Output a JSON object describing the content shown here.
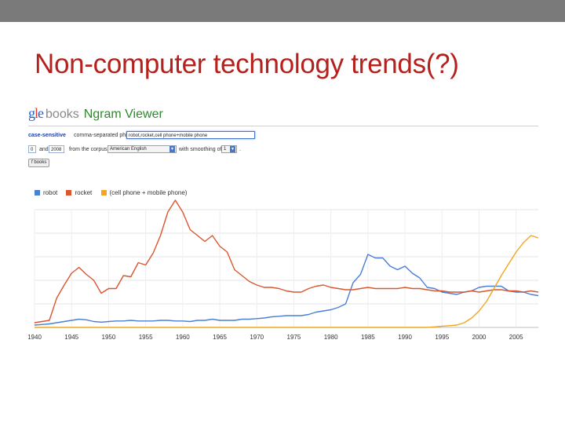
{
  "slide": {
    "title": "Non-computer technology trends(?)"
  },
  "app": {
    "logo_g": "g",
    "logo_l": "l",
    "logo_e": "e",
    "logo_books": "books",
    "logo_name": "Ngram Viewer"
  },
  "controls": {
    "case_sensitive": "case-sensitive",
    "phrases_label": "comma-separated phrases:",
    "phrases_value": "robot,rocket,cell phone+mobile phone",
    "start_year": "0",
    "and_label": "and",
    "end_year": "2008",
    "corpus_label": "from the corpus",
    "corpus_value": "American English",
    "smoothing_label": "with smoothing of",
    "smoothing_value": "1",
    "period": ".",
    "search_button": "f books"
  },
  "colors": {
    "robot": "#4a7fd6",
    "rocket": "#d9562f",
    "phone": "#f2a61f"
  },
  "chart_data": {
    "type": "line",
    "title": "",
    "xlabel": "",
    "ylabel": "",
    "xlim": [
      1940,
      2008
    ],
    "ylim": [
      0,
      1
    ],
    "grid": true,
    "legend_position": "top-left",
    "x_ticks": [
      1940,
      1945,
      1950,
      1955,
      1960,
      1965,
      1970,
      1975,
      1980,
      1985,
      1990,
      1995,
      2000,
      2005
    ],
    "x": [
      1940,
      1941,
      1942,
      1943,
      1944,
      1945,
      1946,
      1947,
      1948,
      1949,
      1950,
      1951,
      1952,
      1953,
      1954,
      1955,
      1956,
      1957,
      1958,
      1959,
      1960,
      1961,
      1962,
      1963,
      1964,
      1965,
      1966,
      1967,
      1968,
      1969,
      1970,
      1971,
      1972,
      1973,
      1974,
      1975,
      1976,
      1977,
      1978,
      1979,
      1980,
      1981,
      1982,
      1983,
      1984,
      1985,
      1986,
      1987,
      1988,
      1989,
      1990,
      1991,
      1992,
      1993,
      1994,
      1995,
      1996,
      1997,
      1998,
      1999,
      2000,
      2001,
      2002,
      2003,
      2004,
      2005,
      2006,
      2007,
      2008
    ],
    "series": [
      {
        "name": "robot",
        "values": [
          0.02,
          0.025,
          0.03,
          0.04,
          0.05,
          0.06,
          0.07,
          0.065,
          0.05,
          0.045,
          0.05,
          0.055,
          0.055,
          0.06,
          0.055,
          0.055,
          0.055,
          0.06,
          0.06,
          0.055,
          0.055,
          0.05,
          0.06,
          0.06,
          0.07,
          0.06,
          0.06,
          0.06,
          0.07,
          0.07,
          0.075,
          0.08,
          0.09,
          0.095,
          0.1,
          0.1,
          0.1,
          0.11,
          0.13,
          0.14,
          0.15,
          0.17,
          0.2,
          0.38,
          0.45,
          0.62,
          0.59,
          0.59,
          0.52,
          0.49,
          0.52,
          0.46,
          0.42,
          0.34,
          0.33,
          0.3,
          0.29,
          0.28,
          0.3,
          0.31,
          0.34,
          0.35,
          0.35,
          0.35,
          0.31,
          0.3,
          0.3,
          0.28,
          0.27
        ]
      },
      {
        "name": "rocket",
        "values": [
          0.04,
          0.05,
          0.06,
          0.25,
          0.36,
          0.46,
          0.51,
          0.45,
          0.4,
          0.29,
          0.33,
          0.33,
          0.44,
          0.43,
          0.55,
          0.53,
          0.63,
          0.78,
          0.98,
          1.08,
          0.98,
          0.83,
          0.78,
          0.73,
          0.78,
          0.69,
          0.64,
          0.49,
          0.44,
          0.39,
          0.36,
          0.34,
          0.34,
          0.33,
          0.31,
          0.3,
          0.3,
          0.33,
          0.35,
          0.36,
          0.34,
          0.33,
          0.32,
          0.32,
          0.33,
          0.34,
          0.33,
          0.33,
          0.33,
          0.33,
          0.34,
          0.33,
          0.33,
          0.32,
          0.31,
          0.31,
          0.3,
          0.3,
          0.3,
          0.31,
          0.3,
          0.31,
          0.32,
          0.32,
          0.31,
          0.31,
          0.3,
          0.31,
          0.3
        ]
      },
      {
        "name": "(cell phone + mobile phone)",
        "values": [
          0,
          0,
          0,
          0,
          0,
          0,
          0,
          0,
          0,
          0,
          0,
          0,
          0,
          0,
          0,
          0,
          0,
          0,
          0,
          0,
          0,
          0,
          0,
          0,
          0,
          0,
          0,
          0,
          0,
          0,
          0,
          0,
          0,
          0,
          0,
          0,
          0,
          0,
          0,
          0,
          0,
          0,
          0,
          0,
          0,
          0,
          0,
          0,
          0,
          0,
          0,
          0,
          0,
          0,
          0.005,
          0.01,
          0.015,
          0.02,
          0.04,
          0.08,
          0.14,
          0.22,
          0.33,
          0.44,
          0.54,
          0.64,
          0.72,
          0.78,
          0.76
        ]
      }
    ]
  }
}
